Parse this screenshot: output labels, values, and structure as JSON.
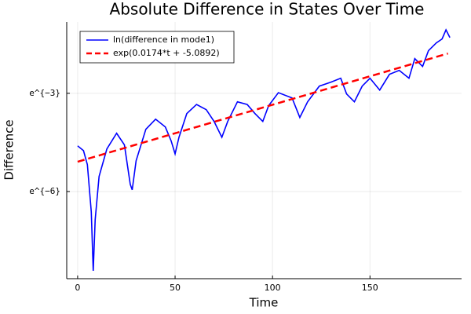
{
  "chart_data": {
    "type": "line",
    "title": "Absolute Difference in States Over Time",
    "xlabel": "Time",
    "ylabel": "Difference",
    "xlim": [
      -5.6,
      197
    ],
    "xticks": [
      0,
      50,
      100,
      150
    ],
    "ylim": [
      0.000173,
      0.44
    ],
    "ylog": true,
    "yticks": [
      {
        "value": 0.002479,
        "label": "e^{−6}"
      },
      {
        "value": 0.049787,
        "label": "e^{−3}"
      }
    ],
    "grid": true,
    "legend": "top-left",
    "series": [
      {
        "name": "ln(difference in mode1)",
        "color": "#0000ff",
        "style": "solid",
        "x": [
          0,
          3,
          5,
          7,
          8,
          9,
          11,
          15,
          20,
          24,
          27,
          28,
          30,
          35,
          40,
          45,
          48,
          50,
          52,
          56,
          61,
          66,
          70,
          74,
          77,
          82,
          87,
          91,
          95,
          98,
          103,
          110,
          114,
          118,
          124,
          130,
          135,
          138,
          142,
          146,
          150,
          155,
          160,
          165,
          170,
          173,
          177,
          180,
          184,
          187,
          189,
          191
        ],
        "values": [
          0.01,
          0.00865,
          0.00563,
          0.00133,
          0.00022,
          0.00105,
          0.00393,
          0.0091,
          0.0147,
          0.0103,
          0.00309,
          0.00261,
          0.00635,
          0.0166,
          0.0226,
          0.0178,
          0.0116,
          0.00783,
          0.013,
          0.0268,
          0.0354,
          0.0302,
          0.0211,
          0.013,
          0.0211,
          0.0384,
          0.0354,
          0.0268,
          0.0211,
          0.0341,
          0.0508,
          0.0433,
          0.0238,
          0.0384,
          0.062,
          0.07,
          0.0789,
          0.0488,
          0.0384,
          0.062,
          0.0789,
          0.055,
          0.0889,
          0.1003,
          0.0789,
          0.1437,
          0.113,
          0.183,
          0.232,
          0.262,
          0.346,
          0.273
        ]
      },
      {
        "name": "exp(0.0174*t + -5.0892)",
        "color": "#ff0000",
        "style": "dashed",
        "x": [
          0,
          190
        ],
        "values": [
          0.00616,
          0.168
        ]
      }
    ]
  }
}
